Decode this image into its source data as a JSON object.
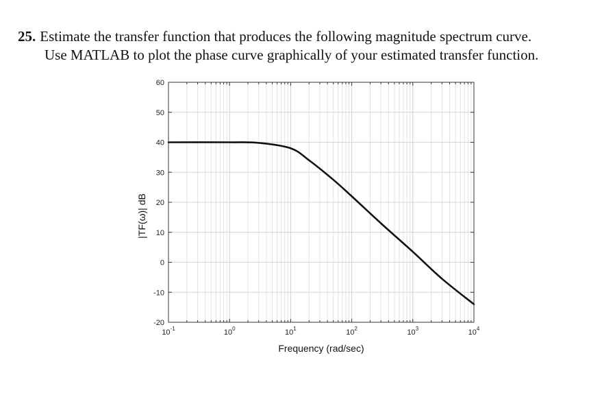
{
  "problem": {
    "number": "25.",
    "line1": "Estimate the transfer function that produces the following magnitude spectrum curve.",
    "line2": "Use MATLAB to plot the phase curve graphically of your estimated transfer function."
  },
  "chart_data": {
    "type": "line",
    "title": "",
    "xlabel": "Frequency (rad/sec)",
    "ylabel": "|TF(ω)| dB",
    "xscale": "log",
    "xlim": [
      0.1,
      10000
    ],
    "ylim": [
      -20,
      60
    ],
    "grid": true,
    "x_tick_labels": [
      {
        "base": "10",
        "exp": "-1",
        "value": 0.1
      },
      {
        "base": "10",
        "exp": "0",
        "value": 1
      },
      {
        "base": "10",
        "exp": "1",
        "value": 10
      },
      {
        "base": "10",
        "exp": "2",
        "value": 100
      },
      {
        "base": "10",
        "exp": "3",
        "value": 1000
      },
      {
        "base": "10",
        "exp": "4",
        "value": 10000
      }
    ],
    "y_ticks": [
      -20,
      -10,
      0,
      10,
      20,
      30,
      40,
      50,
      60
    ],
    "series": [
      {
        "color": "#111111",
        "points": [
          {
            "x": 0.1,
            "y": 40
          },
          {
            "x": 1,
            "y": 40
          },
          {
            "x": 3,
            "y": 39.8
          },
          {
            "x": 10,
            "y": 38
          },
          {
            "x": 20,
            "y": 34
          },
          {
            "x": 50,
            "y": 27.5
          },
          {
            "x": 100,
            "y": 22
          },
          {
            "x": 300,
            "y": 13
          },
          {
            "x": 1000,
            "y": 3.5
          },
          {
            "x": 3000,
            "y": -5.5
          },
          {
            "x": 10000,
            "y": -14
          }
        ]
      }
    ]
  }
}
